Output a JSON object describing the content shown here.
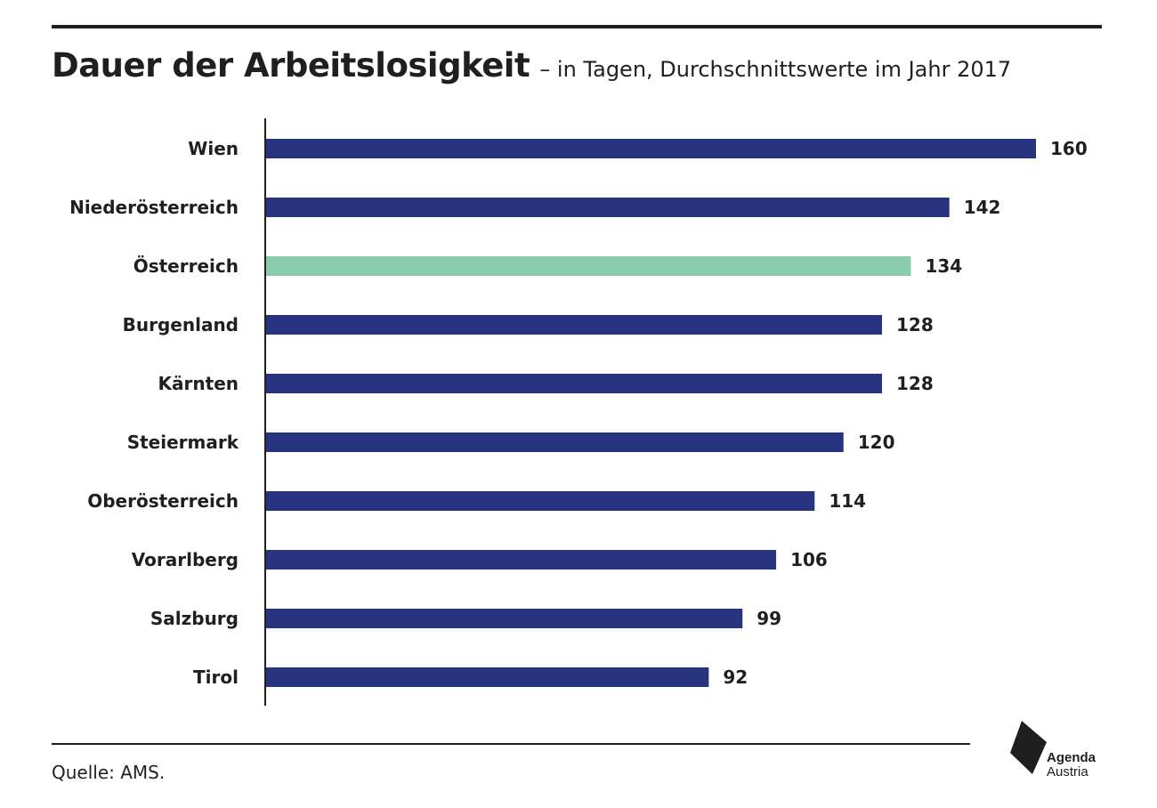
{
  "header": {
    "title": "Dauer der Arbeitslosigkeit",
    "subtitle": "– in Tagen, Durchschnittswerte im Jahr 2017"
  },
  "footer": {
    "source": "Quelle: AMS.",
    "logo_line1": "Agenda",
    "logo_line2": "Austria"
  },
  "colors": {
    "bar": "#27337f",
    "highlight": "#8acbad",
    "text": "#1f1f1f"
  },
  "chart_data": {
    "type": "bar",
    "orientation": "horizontal",
    "title": "Dauer der Arbeitslosigkeit",
    "subtitle": "– in Tagen, Durchschnittswerte im Jahr 2017",
    "categories": [
      "Wien",
      "Niederösterreich",
      "Österreich",
      "Burgenland",
      "Kärnten",
      "Steiermark",
      "Oberösterreich",
      "Vorarlberg",
      "Salzburg",
      "Tirol"
    ],
    "values": [
      160,
      142,
      134,
      128,
      128,
      120,
      114,
      106,
      99,
      92
    ],
    "highlight_category": "Österreich",
    "xlim": [
      0,
      160
    ],
    "data_labels": true,
    "grid": false,
    "legend": "none"
  }
}
